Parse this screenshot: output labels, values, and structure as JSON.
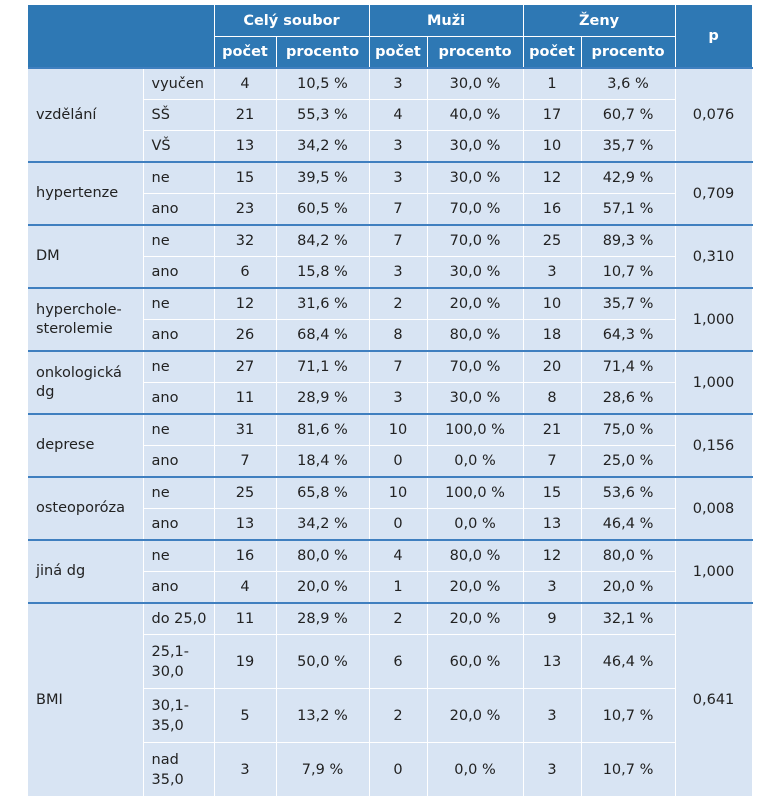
{
  "header": {
    "groups": [
      "Celý soubor",
      "Muži",
      "Ženy"
    ],
    "sub": [
      "počet",
      "procento",
      "počet",
      "procento",
      "počet",
      "procento"
    ],
    "p": "p"
  },
  "rows": [
    {
      "category": "vzdělání",
      "p": "0,076",
      "levels": [
        {
          "level": "vyučen",
          "cells": [
            "4",
            "10,5 %",
            "3",
            "30,0 %",
            "1",
            "3,6 %"
          ]
        },
        {
          "level": "SŠ",
          "cells": [
            "21",
            "55,3 %",
            "4",
            "40,0 %",
            "17",
            "60,7 %"
          ]
        },
        {
          "level": "VŠ",
          "cells": [
            "13",
            "34,2 %",
            "3",
            "30,0 %",
            "10",
            "35,7 %"
          ]
        }
      ]
    },
    {
      "category": "hypertenze",
      "p": "0,709",
      "levels": [
        {
          "level": "ne",
          "cells": [
            "15",
            "39,5 %",
            "3",
            "30,0 %",
            "12",
            "42,9 %"
          ]
        },
        {
          "level": "ano",
          "cells": [
            "23",
            "60,5 %",
            "7",
            "70,0 %",
            "16",
            "57,1 %"
          ]
        }
      ]
    },
    {
      "category": "DM",
      "p": "0,310",
      "levels": [
        {
          "level": "ne",
          "cells": [
            "32",
            "84,2 %",
            "7",
            "70,0 %",
            "25",
            "89,3 %"
          ]
        },
        {
          "level": "ano",
          "cells": [
            "6",
            "15,8 %",
            "3",
            "30,0 %",
            "3",
            "10,7 %"
          ]
        }
      ]
    },
    {
      "category": "hypercholesterolemie",
      "category_lines": [
        "hyperchole-",
        "sterolemie"
      ],
      "p": "1,000",
      "levels": [
        {
          "level": "ne",
          "cells": [
            "12",
            "31,6 %",
            "2",
            "20,0 %",
            "10",
            "35,7 %"
          ]
        },
        {
          "level": "ano",
          "cells": [
            "26",
            "68,4 %",
            "8",
            "80,0 %",
            "18",
            "64,3 %"
          ]
        }
      ]
    },
    {
      "category": "onkologická dg",
      "category_lines": [
        "onkologická",
        "dg"
      ],
      "p": "1,000",
      "levels": [
        {
          "level": "ne",
          "cells": [
            "27",
            "71,1 %",
            "7",
            "70,0 %",
            "20",
            "71,4 %"
          ]
        },
        {
          "level": "ano",
          "cells": [
            "11",
            "28,9 %",
            "3",
            "30,0 %",
            "8",
            "28,6 %"
          ]
        }
      ]
    },
    {
      "category": "deprese",
      "p": "0,156",
      "levels": [
        {
          "level": "ne",
          "cells": [
            "31",
            "81,6 %",
            "10",
            "100,0 %",
            "21",
            "75,0 %"
          ]
        },
        {
          "level": "ano",
          "cells": [
            "7",
            "18,4 %",
            "0",
            "0,0 %",
            "7",
            "25,0 %"
          ]
        }
      ]
    },
    {
      "category": "osteoporóza",
      "p": "0,008",
      "levels": [
        {
          "level": "ne",
          "cells": [
            "25",
            "65,8 %",
            "10",
            "100,0 %",
            "15",
            "53,6 %"
          ]
        },
        {
          "level": "ano",
          "cells": [
            "13",
            "34,2 %",
            "0",
            "0,0 %",
            "13",
            "46,4 %"
          ]
        }
      ]
    },
    {
      "category": "jiná dg",
      "p": "1,000",
      "levels": [
        {
          "level": "ne",
          "cells": [
            "16",
            "80,0 %",
            "4",
            "80,0 %",
            "12",
            "80,0 %"
          ]
        },
        {
          "level": "ano",
          "cells": [
            "4",
            "20,0 %",
            "1",
            "20,0 %",
            "3",
            "20,0 %"
          ]
        }
      ]
    },
    {
      "category": "BMI",
      "p": "0,641",
      "levels": [
        {
          "level": "do 25,0",
          "cells": [
            "11",
            "28,9 %",
            "2",
            "20,0 %",
            "9",
            "32,1 %"
          ]
        },
        {
          "level": "25,1–30,0",
          "level_lines": [
            "25,1-",
            "30,0"
          ],
          "cells": [
            "19",
            "50,0 %",
            "6",
            "60,0 %",
            "13",
            "46,4 %"
          ]
        },
        {
          "level": "30,1–35,0",
          "level_lines": [
            "30,1-",
            "35,0"
          ],
          "cells": [
            "5",
            "13,2 %",
            "2",
            "20,0 %",
            "3",
            "10,7 %"
          ]
        },
        {
          "level": "nad 35,0",
          "level_lines": [
            "nad",
            "35,0"
          ],
          "cells": [
            "3",
            "7,9 %",
            "0",
            "0,0 %",
            "3",
            "10,7 %"
          ]
        }
      ]
    }
  ]
}
